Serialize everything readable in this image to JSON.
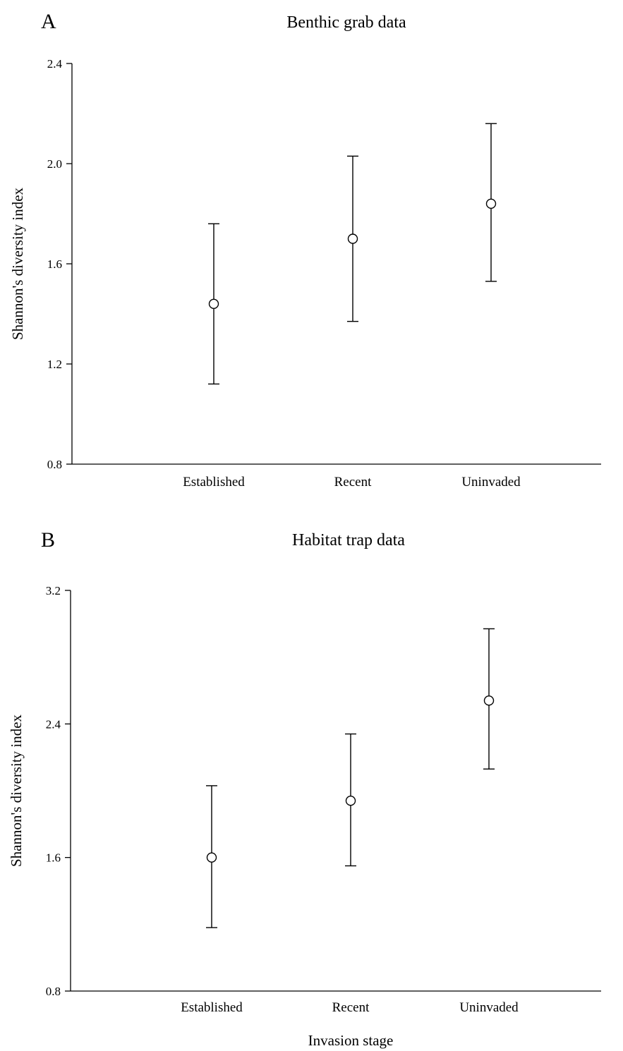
{
  "chart_data": [
    {
      "type": "scatter",
      "panel_label": "A",
      "title": "Benthic grab data",
      "xlabel": "",
      "ylabel": "Shannon's diversity index",
      "categories": [
        "Established",
        "Recent",
        "Uninvaded"
      ],
      "means": [
        1.44,
        1.7,
        1.84
      ],
      "lower": [
        1.12,
        1.37,
        1.53
      ],
      "upper": [
        1.76,
        2.03,
        2.16
      ],
      "ylim": [
        0.8,
        2.4
      ],
      "yticks": [
        "0.8",
        "1.2",
        "1.6",
        "2.0",
        "2.4"
      ],
      "grid": false
    },
    {
      "type": "scatter",
      "panel_label": "B",
      "title": "Habitat trap data",
      "xlabel": "Invasion stage",
      "ylabel": "Shannon's diversity index",
      "categories": [
        "Established",
        "Recent",
        "Uninvaded"
      ],
      "means": [
        1.6,
        1.94,
        2.54
      ],
      "lower": [
        1.18,
        1.55,
        2.13
      ],
      "upper": [
        2.03,
        2.34,
        2.97
      ],
      "ylim": [
        0.8,
        3.2
      ],
      "yticks": [
        "0.8",
        "1.6",
        "2.4",
        "3.2"
      ],
      "grid": false
    }
  ]
}
